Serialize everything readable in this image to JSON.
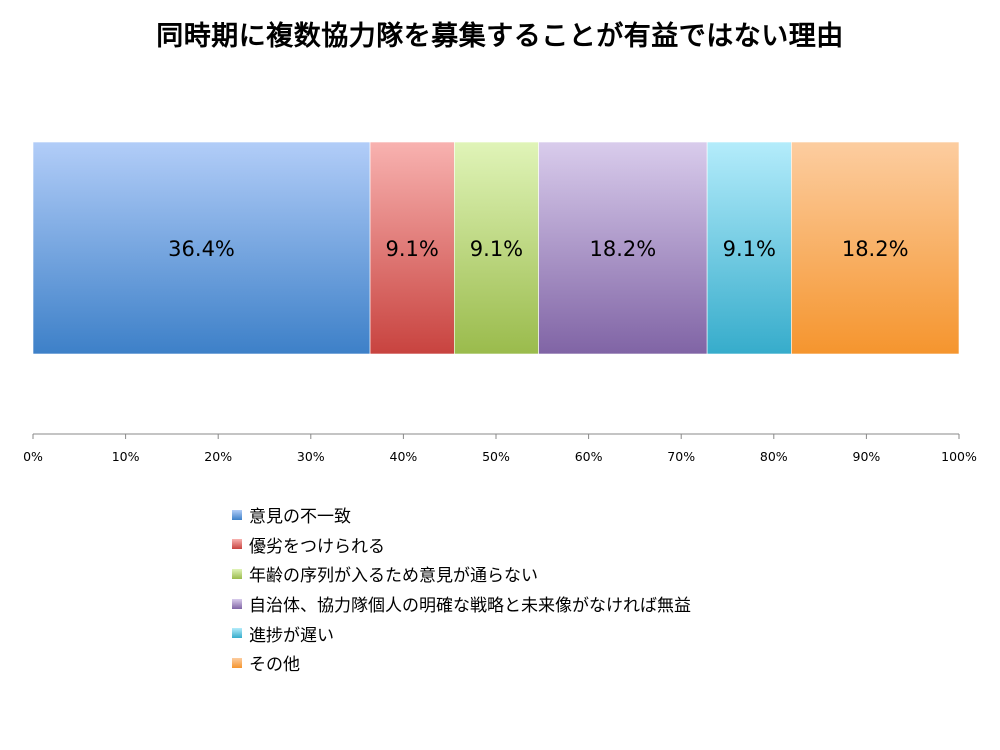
{
  "chart_data": {
    "type": "bar",
    "orientation": "horizontal",
    "stacked": true,
    "title": "同時期に複数協力隊を募集することが有益ではない理由",
    "xlabel": "",
    "ylabel": "",
    "xlim": [
      0,
      100
    ],
    "x_ticks": [
      "0%",
      "10%",
      "20%",
      "30%",
      "40%",
      "50%",
      "60%",
      "70%",
      "80%",
      "90%",
      "100%"
    ],
    "grid": false,
    "legend_position": "bottom",
    "series": [
      {
        "name": "意見の不一致",
        "value": 36.4,
        "label": "36.4%",
        "color_top": "#b2cdf8",
        "color_bottom": "#3d80c8"
      },
      {
        "name": "優劣をつけられる",
        "value": 9.1,
        "label": "9.1%",
        "color_top": "#f8b2b0",
        "color_bottom": "#c8433f"
      },
      {
        "name": "年齢の序列が入るため意見が通らない",
        "value": 9.1,
        "label": "9.1%",
        "color_top": "#e0f4b8",
        "color_bottom": "#9abb4c"
      },
      {
        "name": "自治体、協力隊個人の明確な戦略と未来像がなければ無益",
        "value": 18.2,
        "label": "18.2%",
        "color_top": "#d9ccec",
        "color_bottom": "#8064a5"
      },
      {
        "name": "進捗が遅い",
        "value": 9.1,
        "label": "9.1%",
        "color_top": "#b4ecfb",
        "color_bottom": "#36accb"
      },
      {
        "name": "その他",
        "value": 18.2,
        "label": "18.2%",
        "color_top": "#fccda0",
        "color_bottom": "#f5952e"
      }
    ]
  }
}
